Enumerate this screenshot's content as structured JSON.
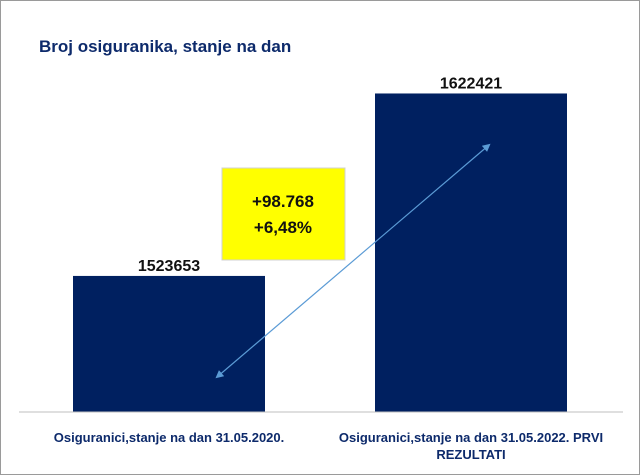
{
  "chart_data": {
    "type": "bar",
    "title": "Broj osiguranika, stanje na dan",
    "categories": [
      [
        "Osiguranici,stanje na dan 31.05.2020."
      ],
      [
        "Osiguranici,stanje na dan 31.05.2022. PRVI",
        "REZULTATI"
      ]
    ],
    "values": [
      1523653,
      1622421
    ],
    "data_labels": [
      "1523653",
      "1622421"
    ],
    "ylim": [
      1450000,
      1640000
    ],
    "grid": false,
    "legend": "none",
    "annotation": {
      "lines": [
        "+98.768",
        "+6,48%"
      ],
      "background": "#ffff00"
    },
    "colors": {
      "bar": "#002060",
      "title": "#0d2a6b",
      "arrow": "#5b9bd5",
      "axis": "#bfbfbf"
    }
  }
}
